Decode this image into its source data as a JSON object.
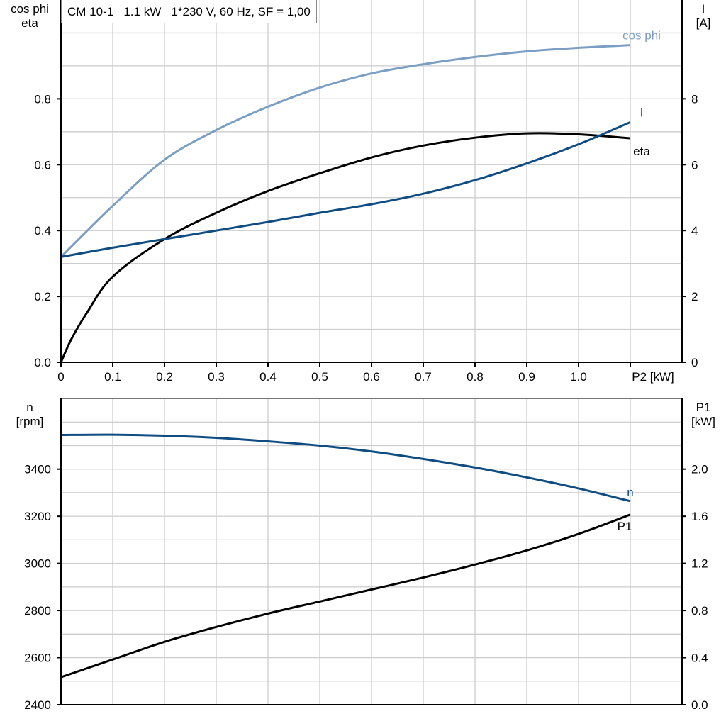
{
  "title": "CM 10-1   1.1 kW   1*230 V, 60 Hz, SF = 1,00",
  "colors": {
    "cos_phi": "#7b9ec3",
    "I": "#0f4c81",
    "eta": "#000000",
    "n": "#0f4c81",
    "P1": "#000000",
    "grid": "#cccccc"
  },
  "chart_data": [
    {
      "type": "line",
      "xlabel": "P2 [kW]",
      "x_ticks": [
        "0",
        "0.1",
        "0.2",
        "0.3",
        "0.4",
        "0.5",
        "0.6",
        "0.7",
        "0.8",
        "0.9",
        "1.0"
      ],
      "xlim": [
        0,
        1.2
      ],
      "ylabel_left": [
        "cos phi",
        "eta"
      ],
      "ylabel_right": [
        "I",
        "[A]"
      ],
      "yticks_left": [
        "0.0",
        "0.2",
        "0.4",
        "0.6",
        "0.8"
      ],
      "yticks_right": [
        "0",
        "2",
        "4",
        "6",
        "8"
      ],
      "ylim_left": [
        0,
        1.1
      ],
      "ylim_right": [
        0,
        11
      ],
      "grid": true,
      "x": [
        0,
        0.1,
        0.2,
        0.3,
        0.4,
        0.5,
        0.6,
        0.7,
        0.8,
        0.9,
        1.0,
        1.1
      ],
      "series": [
        {
          "name": "cos phi",
          "axis": "left",
          "values": [
            0.32,
            0.475,
            0.615,
            0.705,
            0.776,
            0.834,
            0.877,
            0.905,
            0.927,
            0.944,
            0.955,
            0.963
          ]
        },
        {
          "name": "eta",
          "axis": "left",
          "x": [
            0,
            0.02,
            0.05,
            0.1,
            0.2,
            0.3,
            0.4,
            0.5,
            0.6,
            0.7,
            0.8,
            0.9,
            1.0,
            1.1
          ],
          "values": [
            0,
            0.07,
            0.15,
            0.26,
            0.374,
            0.454,
            0.52,
            0.574,
            0.622,
            0.658,
            0.682,
            0.695,
            0.692,
            0.68
          ]
        },
        {
          "name": "I",
          "axis": "right",
          "values": [
            3.2,
            3.48,
            3.74,
            4.0,
            4.26,
            4.54,
            4.8,
            5.12,
            5.53,
            6.04,
            6.62,
            7.29
          ]
        }
      ]
    },
    {
      "type": "line",
      "xlim": [
        0,
        1.2
      ],
      "ylabel_left": [
        "n",
        "[rpm]"
      ],
      "ylabel_right": [
        "P1",
        "[kW]"
      ],
      "yticks_left": [
        "2400",
        "2600",
        "2800",
        "3000",
        "3200",
        "3400"
      ],
      "yticks_right": [
        "0.0",
        "0.4",
        "0.8",
        "1.2",
        "1.6",
        "2.0"
      ],
      "ylim_left": [
        2400,
        3700
      ],
      "ylim_right": [
        0,
        2.6
      ],
      "grid": true,
      "x": [
        0,
        0.1,
        0.2,
        0.3,
        0.4,
        0.5,
        0.6,
        0.7,
        0.8,
        0.9,
        1.0,
        1.1
      ],
      "series": [
        {
          "name": "n",
          "axis": "left",
          "values": [
            3545,
            3546,
            3542,
            3533,
            3518,
            3500,
            3475,
            3443,
            3407,
            3365,
            3318,
            3264
          ]
        },
        {
          "name": "P1",
          "axis": "right",
          "values": [
            0.234,
            0.384,
            0.534,
            0.66,
            0.774,
            0.876,
            0.978,
            1.08,
            1.19,
            1.31,
            1.45,
            1.614
          ]
        }
      ]
    }
  ]
}
